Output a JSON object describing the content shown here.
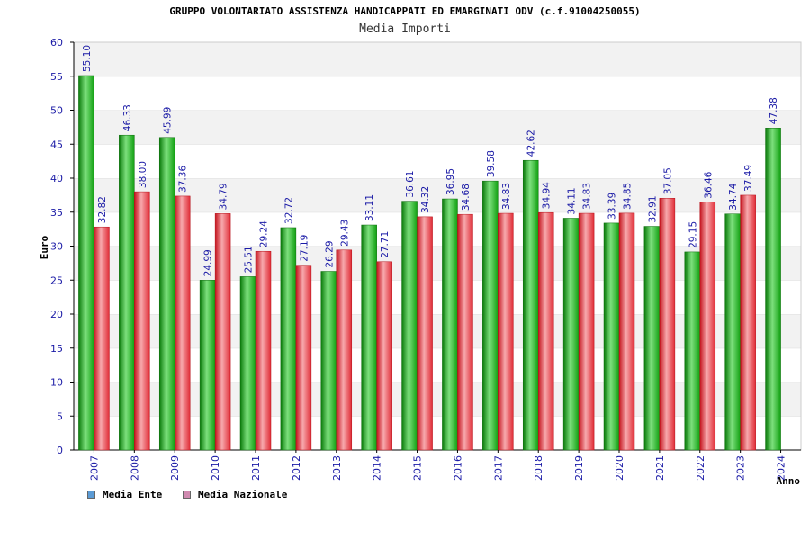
{
  "chart_data": {
    "type": "bar",
    "title": "GRUPPO VOLONTARIATO ASSISTENZA HANDICAPPATI ED EMARGINATI ODV (c.f.91004250055)",
    "subtitle": "Media Importi",
    "xlabel": "Anno",
    "ylabel": "Euro",
    "ylim": [
      0,
      60
    ],
    "yticks": [
      0,
      5,
      10,
      15,
      20,
      25,
      30,
      35,
      40,
      45,
      50,
      55,
      60
    ],
    "grid": "horizontal bands",
    "legend_position": "bottom-left",
    "categories": [
      "2007",
      "2008",
      "2009",
      "2010",
      "2011",
      "2012",
      "2013",
      "2014",
      "2015",
      "2016",
      "2017",
      "2018",
      "2019",
      "2020",
      "2021",
      "2022",
      "2023",
      "2024"
    ],
    "series": [
      {
        "name": "Media Ente",
        "color": "#1db31d",
        "legend_color": "#5b9bd5",
        "values": [
          55.1,
          46.33,
          45.99,
          24.99,
          25.51,
          32.72,
          26.29,
          33.11,
          36.61,
          36.95,
          39.58,
          42.62,
          34.11,
          33.39,
          32.91,
          29.15,
          34.74,
          47.38
        ],
        "labels": [
          "55.10",
          "46.33",
          "45.99",
          "24.99",
          "25.51",
          "32.72",
          "26.29",
          "33.11",
          "36.61",
          "36.95",
          "39.58",
          "42.62",
          "34.11",
          "33.39",
          "32.91",
          "29.15",
          "34.74",
          "47.38"
        ]
      },
      {
        "name": "Media Nazionale",
        "color": "#e8343c",
        "legend_color": "#d08ab0",
        "values": [
          32.82,
          38.0,
          37.36,
          34.79,
          29.24,
          27.19,
          29.43,
          27.71,
          34.32,
          34.68,
          34.83,
          34.94,
          34.83,
          34.85,
          37.05,
          36.46,
          37.49,
          null
        ],
        "labels": [
          "32.82",
          "38.00",
          "37.36",
          "34.79",
          "29.24",
          "27.19",
          "29.43",
          "27.71",
          "34.32",
          "34.68",
          "34.83",
          "34.94",
          "34.83",
          "34.85",
          "37.05",
          "36.46",
          "37.49",
          null
        ]
      }
    ]
  }
}
